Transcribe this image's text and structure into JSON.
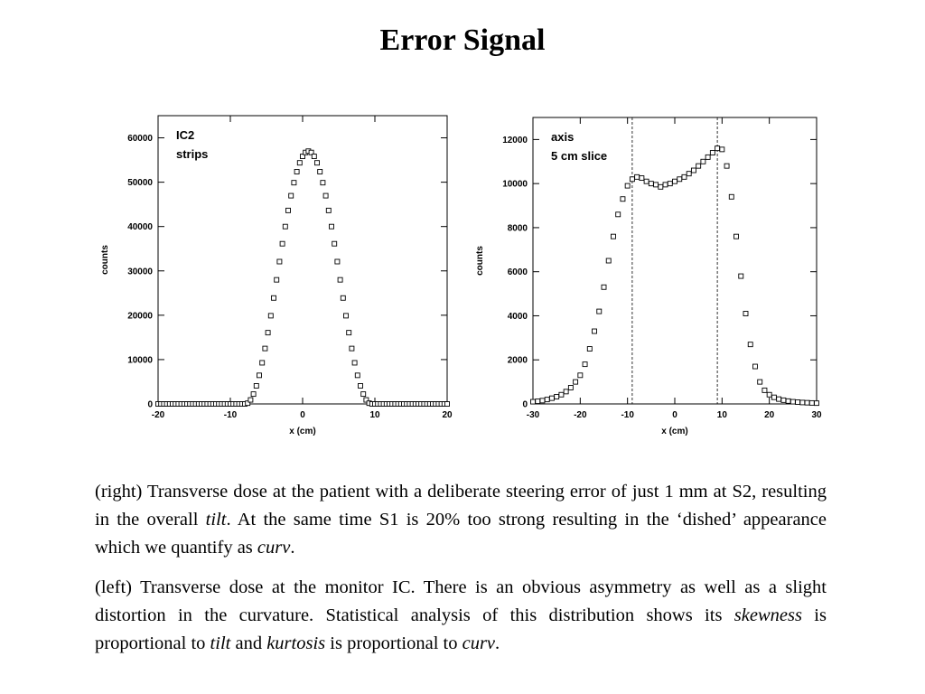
{
  "slide": {
    "title": "Error Signal"
  },
  "chart_data": [
    {
      "type": "scatter",
      "legend": [
        "IC2",
        "strips"
      ],
      "legend_placement": "top-left",
      "xlabel": "x (cm)",
      "ylabel": "counts",
      "xlim": [
        -20,
        20
      ],
      "ylim": [
        0,
        65000
      ],
      "xticks": [
        "-20",
        "-10",
        "0",
        "10",
        "20"
      ],
      "yticks": [
        "0",
        "10000",
        "20000",
        "30000",
        "40000",
        "50000",
        "60000"
      ],
      "marker": "open-square",
      "grid": false,
      "profile": {
        "shape": "raised-cosine",
        "center": 0.8,
        "half_width": 8.7,
        "peak": 57000,
        "x_step": 0.4
      }
    },
    {
      "type": "scatter",
      "legend": [
        "axis",
        "5 cm slice"
      ],
      "legend_placement": "top-left",
      "xlabel": "x (cm)",
      "ylabel": "counts",
      "xlim": [
        -30,
        30
      ],
      "ylim": [
        0,
        13000
      ],
      "xticks": [
        "-30",
        "-20",
        "-10",
        "0",
        "10",
        "20",
        "30"
      ],
      "yticks": [
        "0",
        "2000",
        "4000",
        "6000",
        "8000",
        "10000",
        "12000"
      ],
      "marker": "open-square",
      "grid": false,
      "vlines": [
        -9,
        9
      ],
      "x": [
        -30,
        -29,
        -28,
        -27,
        -26,
        -25,
        -24,
        -23,
        -22,
        -21,
        -20,
        -19,
        -18,
        -17,
        -16,
        -15,
        -14,
        -13,
        -12,
        -11,
        -10,
        -9,
        -8,
        -7,
        -6,
        -5,
        -4,
        -3,
        -2,
        -1,
        0,
        1,
        2,
        3,
        4,
        5,
        6,
        7,
        8,
        9,
        10,
        11,
        12,
        13,
        14,
        15,
        16,
        17,
        18,
        19,
        20,
        21,
        22,
        23,
        24,
        25,
        26,
        27,
        28,
        29,
        30
      ],
      "y": [
        100,
        120,
        150,
        200,
        260,
        330,
        420,
        560,
        740,
        1000,
        1300,
        1800,
        2500,
        3300,
        4200,
        5300,
        6500,
        7600,
        8600,
        9300,
        9900,
        10200,
        10300,
        10250,
        10100,
        10000,
        9950,
        9850,
        9950,
        10000,
        10100,
        10200,
        10300,
        10450,
        10600,
        10800,
        11000,
        11200,
        11400,
        11600,
        11550,
        10800,
        9400,
        7600,
        5800,
        4100,
        2700,
        1700,
        1000,
        620,
        420,
        300,
        220,
        170,
        130,
        100,
        80,
        65,
        55,
        45,
        35
      ]
    }
  ],
  "paragraphs": {
    "right": {
      "s1": "(right) Transverse dose at the patient with a deliberate steering error of just 1 mm at S2, resulting in the overall ",
      "e1": "tilt",
      "s2": ". At the same time S1 is 20% too strong resulting in the ‘dished’ appearance which we quantify as ",
      "e2": "curv",
      "s3": "."
    },
    "left": {
      "s1": "(left) Transverse dose at the monitor IC. There is an obvious asymmetry as well as a slight distortion in the curvature. Statistical analysis of this distribution shows its ",
      "e1": "skewness",
      "s2": " is proportional to ",
      "e2": "tilt",
      "s3": " and ",
      "e3": "kurtosis",
      "s4": " is proportional to ",
      "e4": "curv",
      "s5": "."
    }
  }
}
